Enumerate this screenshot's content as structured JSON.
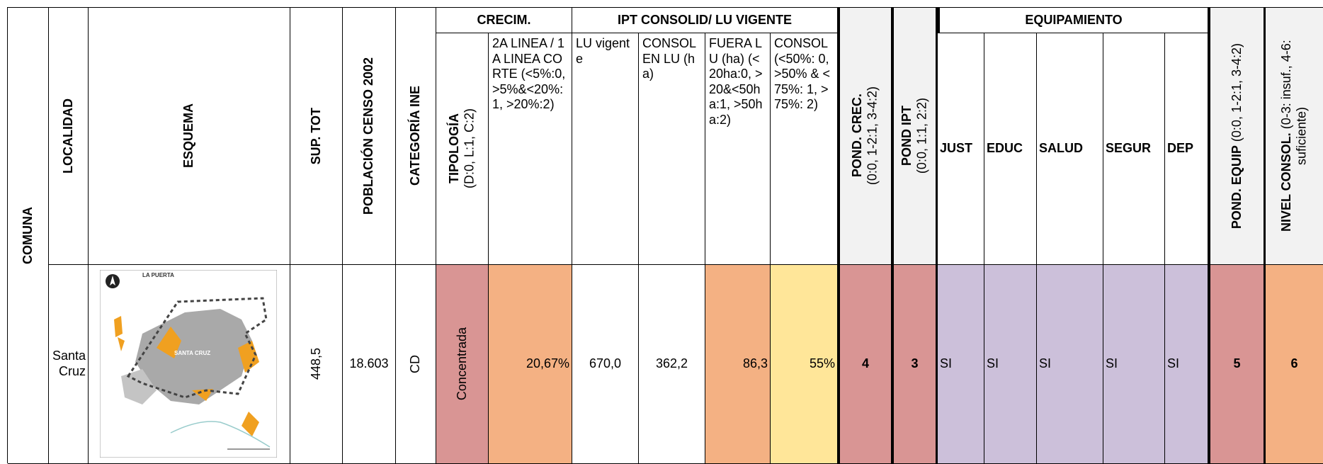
{
  "header": {
    "groups": [
      "CRECIM.",
      "IPT CONSOLID/ LU VIGENTE",
      "EQUIPAMIENTO"
    ],
    "columns": [
      {
        "title": "COMUNA"
      },
      {
        "title": "LOCALIDAD"
      },
      {
        "title": "ESQUEMA"
      },
      {
        "title": "SUP. TOT"
      },
      {
        "title": "POBLACIÓN CENSO 2002"
      },
      {
        "title": "CATEGORÍA INE"
      },
      {
        "title": "TIPOLOGÍA",
        "note": "(D:0, L:1, C:2)"
      },
      {
        "title": "2A LINEA / 1A LINEA CORTE (<5%:0, >5%&<20%:1, >20%:2)"
      },
      {
        "title": "LU vigente"
      },
      {
        "title": "CONSOL EN LU (ha)"
      },
      {
        "title": "FUERA LU (ha) (<20ha:0, >20&<50ha:1, >50ha:2)"
      },
      {
        "title": "CONSOL (<50%: 0, >50% & <75%: 1, >75%: 2)"
      },
      {
        "title": "POND. CREC.",
        "note": "(0:0, 1-2:1, 3-4:2)"
      },
      {
        "title": "POND IPT",
        "note": "(0:0, 1:1, 2:2)"
      },
      {
        "title": "JUST"
      },
      {
        "title": "EDUC"
      },
      {
        "title": "SALUD"
      },
      {
        "title": "SEGUR"
      },
      {
        "title": "DEP"
      },
      {
        "title": "POND. EQUIP",
        "note": "(0:0, 1-2:1, 3-4:2)"
      },
      {
        "title": "NIVEL CONSOL.",
        "note": "(0-3: insuf., 4-6: suficiente)"
      }
    ]
  },
  "row": {
    "cells": [
      "Santa Cruz",
      "448,5",
      "18.603",
      "CD",
      "Concentrada",
      "20,67%",
      "670,0",
      "362,2",
      "86,3",
      "55%",
      "4",
      "3",
      "SI",
      "SI",
      "SI",
      "SI",
      "SI",
      "5",
      "6"
    ]
  },
  "map": {
    "labels": [
      "LA PUERTA",
      "SANTA CRUZ"
    ]
  }
}
